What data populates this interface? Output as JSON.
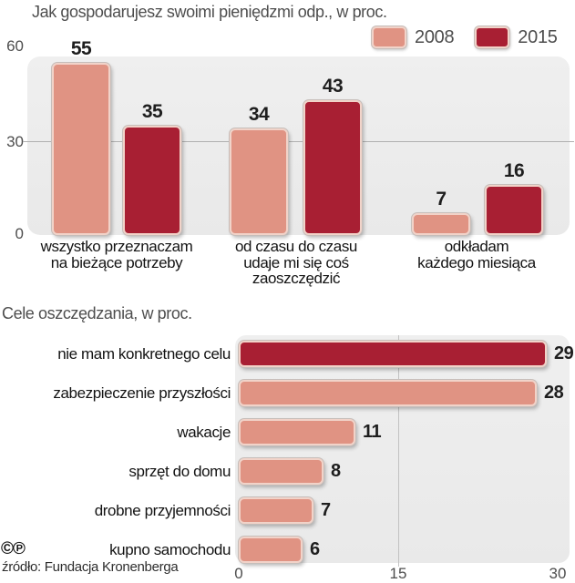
{
  "colors": {
    "salmon_2008": "#e09383",
    "dark_red_2015": "#a81f33",
    "plot_background": "#ececec",
    "bar_border": "#f1d3c9"
  },
  "chart_data": [
    {
      "type": "bar",
      "title": "Jak gospodarujesz swoimi pieniędzmi odp., w proc.",
      "categories": [
        "wszystko przeznaczam\nna bieżące potrzeby",
        "od czasu do czasu\nudaje mi się coś\nzaoszczędzić",
        "odkładam\nkażdego miesiąca"
      ],
      "series": [
        {
          "name": "2008",
          "color": "#e09383",
          "values": [
            55,
            34,
            7
          ]
        },
        {
          "name": "2015",
          "color": "#a81f33",
          "values": [
            35,
            43,
            16
          ]
        }
      ],
      "ylim": [
        0,
        60
      ],
      "yticks": [
        "60",
        "30",
        "0"
      ],
      "grid": "horizontal-gridline-at-30",
      "legend_position": "top-right"
    },
    {
      "type": "bar",
      "orientation": "horizontal",
      "title": "Cele oszczędzania, w proc.",
      "categories": [
        "nie mam konkretnego celu",
        "zabezpieczenie przyszłości",
        "wakacje",
        "sprzęt do domu",
        "drobne przyjemności",
        "kupno samochodu"
      ],
      "values": [
        29,
        28,
        11,
        8,
        7,
        6
      ],
      "bar_colors": [
        "#a81f33",
        "#e09383",
        "#e09383",
        "#e09383",
        "#e09383",
        "#e09383"
      ],
      "xlim": [
        0,
        30
      ],
      "xticks": [
        "0",
        "15",
        "30"
      ],
      "grid": "vertical-gridline-at-15"
    }
  ],
  "footer": {
    "copyright_icons": [
      "©",
      "℗"
    ],
    "source": "źródło: Fundacja Kronenberga"
  }
}
